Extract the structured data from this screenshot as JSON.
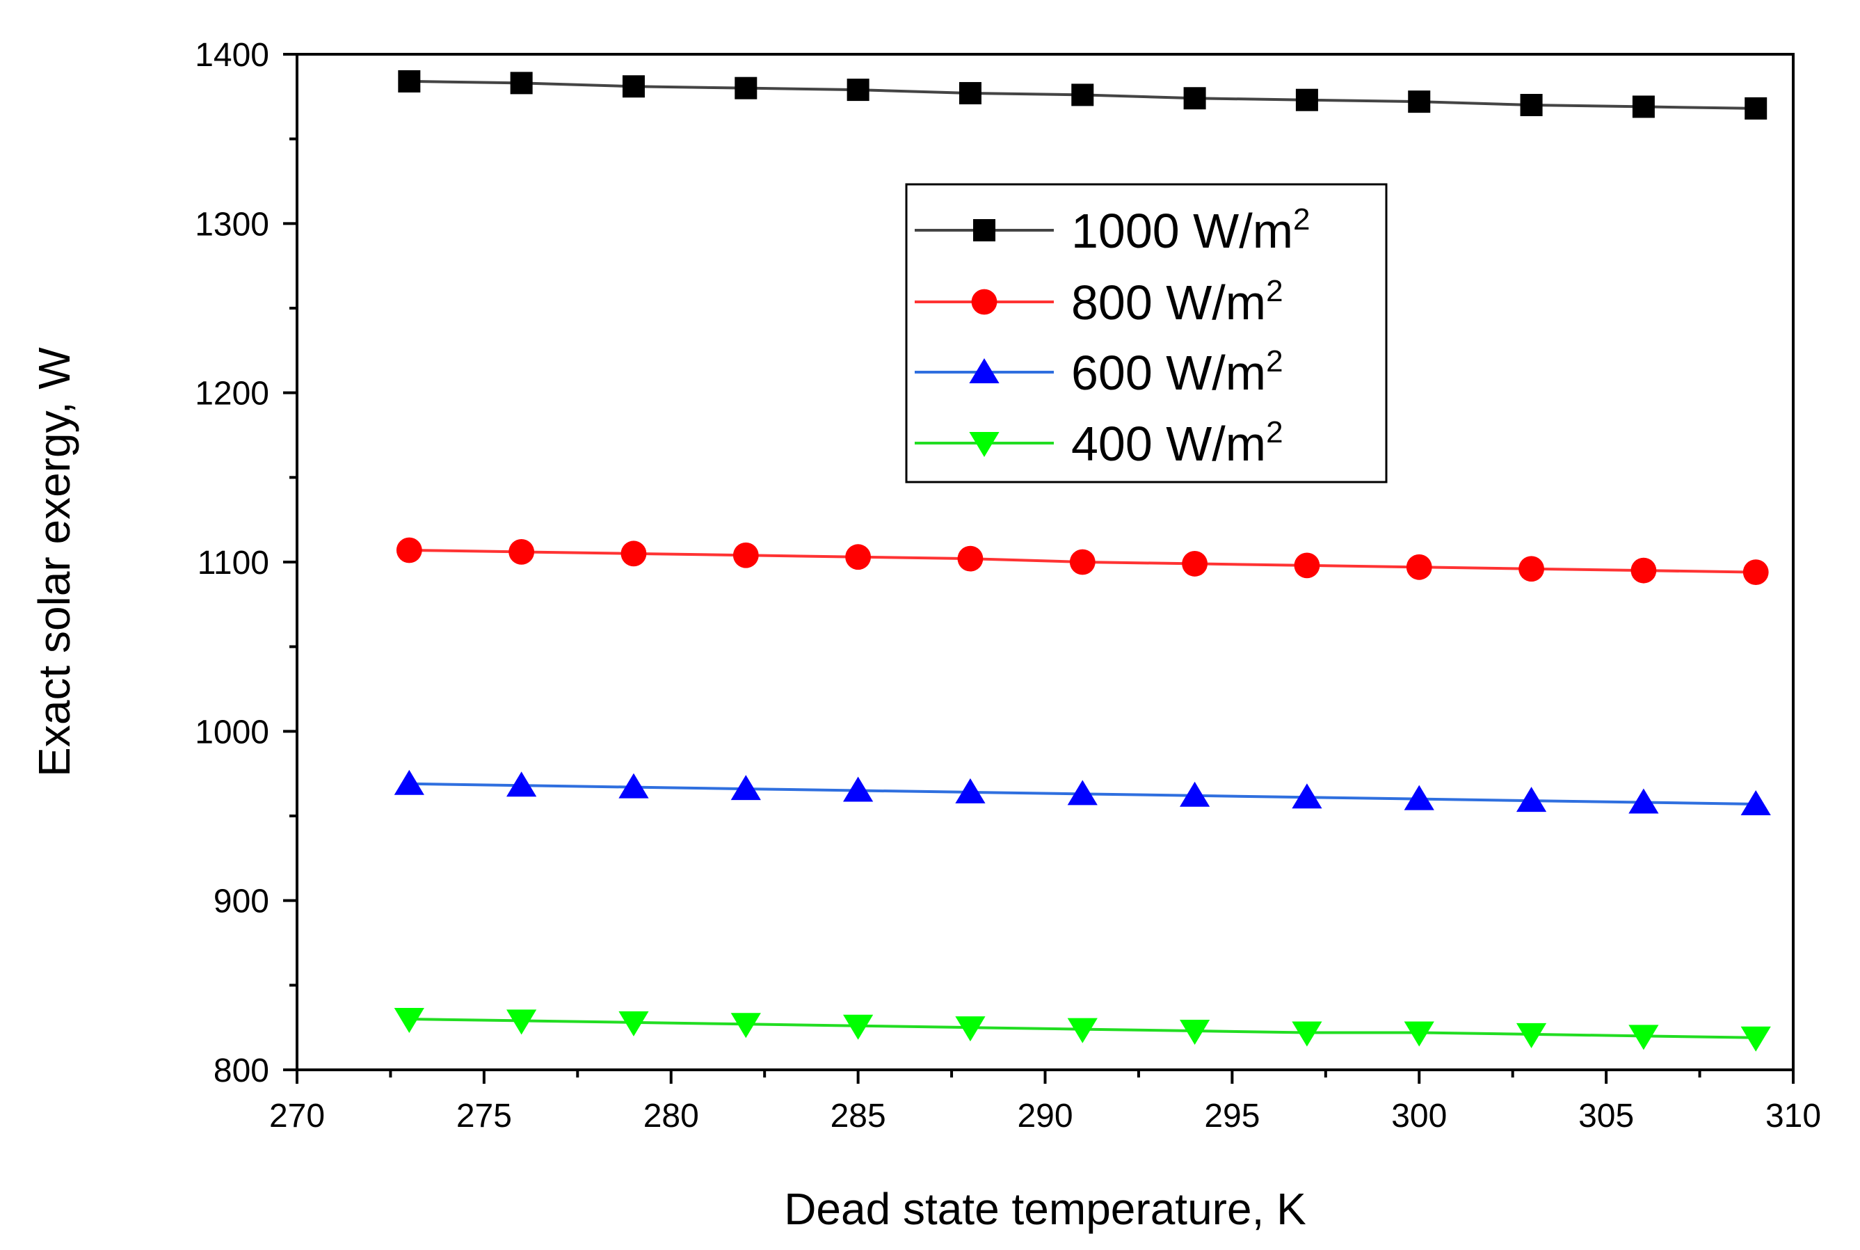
{
  "chart_data": {
    "type": "line",
    "title": "",
    "xlabel": "Dead state temperature, K",
    "ylabel": "Exact solar exergy, W",
    "xlim": [
      270,
      310
    ],
    "ylim": [
      800,
      1400
    ],
    "xticks": [
      270,
      275,
      280,
      285,
      290,
      295,
      300,
      305,
      310
    ],
    "yticks": [
      800,
      900,
      1000,
      1100,
      1200,
      1300,
      1400
    ],
    "grid": false,
    "legend_position": "upper-center",
    "x": [
      273,
      276,
      279,
      282,
      285,
      288,
      291,
      294,
      297,
      300,
      303,
      306,
      309
    ],
    "series": [
      {
        "name": "1000 W/m",
        "sup": "2",
        "marker": "square",
        "color": "#000000",
        "line_color": "#444444",
        "values": [
          1384,
          1383,
          1381,
          1380,
          1379,
          1377,
          1376,
          1374,
          1373,
          1372,
          1370,
          1369,
          1368
        ]
      },
      {
        "name": "800 W/m",
        "sup": "2",
        "marker": "circle",
        "color": "#ff0000",
        "line_color": "#ff3333",
        "values": [
          1107,
          1106,
          1105,
          1104,
          1103,
          1102,
          1100,
          1099,
          1098,
          1097,
          1096,
          1095,
          1094
        ]
      },
      {
        "name": "600 W/m",
        "sup": "2",
        "marker": "triangle-up",
        "color": "#0000ff",
        "line_color": "#2f6fdf",
        "values": [
          969,
          968,
          967,
          966,
          965,
          964,
          963,
          962,
          961,
          960,
          959,
          958,
          957
        ]
      },
      {
        "name": "400 W/m",
        "sup": "2",
        "marker": "triangle-down",
        "color": "#00ff00",
        "line_color": "#22dd22",
        "values": [
          830,
          829,
          828,
          827,
          826,
          825,
          824,
          823,
          822,
          822,
          821,
          820,
          819
        ]
      }
    ]
  }
}
